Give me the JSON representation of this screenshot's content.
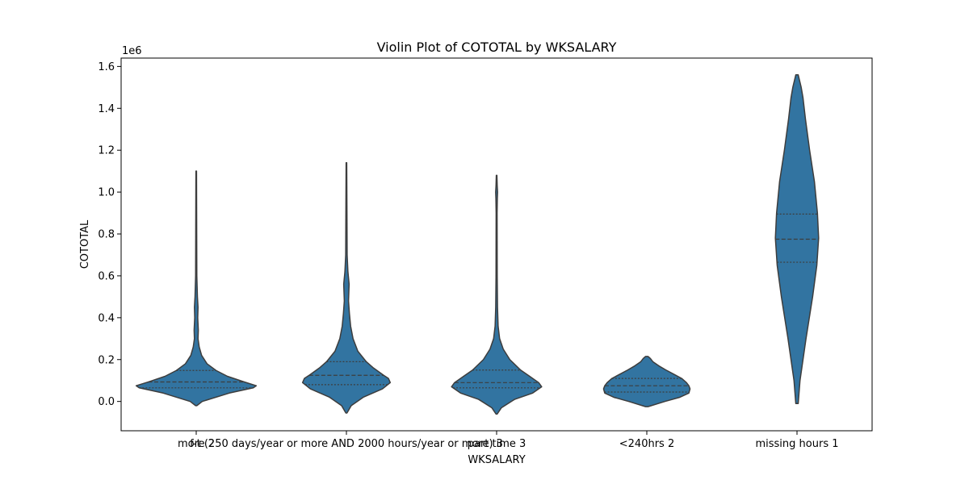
{
  "chart_data": {
    "type": "violin",
    "title": "Violin Plot of COTOTAL by WKSALARY",
    "xlabel": "WKSALARY",
    "ylabel": "COTOTAL",
    "y_offset_label": "1e6",
    "ylim": [
      -0.14,
      1.64
    ],
    "y_ticks": [
      0.0,
      0.2,
      0.4,
      0.6,
      0.8,
      1.0,
      1.2,
      1.4,
      1.6
    ],
    "y_tick_labels": [
      "0.0",
      "0.2",
      "0.4",
      "0.6",
      "0.8",
      "1.0",
      "1.2",
      "1.4",
      "1.6"
    ],
    "categories": [
      "more 2",
      "f-t (250 days/year or more AND 2000 hours/year or more) 3",
      "part time 3",
      "<240hrs 2",
      "missing hours 1"
    ],
    "violin_color": "#3274a1",
    "edge_color": "#3d3d3d",
    "grid": false,
    "legend": "none",
    "violins": [
      {
        "min": -0.02,
        "max": 1.1,
        "quartiles": [
          0.065,
          0.093,
          0.148
        ],
        "density": [
          [
            -0.02,
            0.01
          ],
          [
            0.0,
            0.1
          ],
          [
            0.04,
            0.55
          ],
          [
            0.065,
            0.95
          ],
          [
            0.075,
            1.0
          ],
          [
            0.093,
            0.8
          ],
          [
            0.12,
            0.52
          ],
          [
            0.148,
            0.33
          ],
          [
            0.18,
            0.18
          ],
          [
            0.22,
            0.09
          ],
          [
            0.26,
            0.05
          ],
          [
            0.3,
            0.03
          ],
          [
            0.34,
            0.035
          ],
          [
            0.4,
            0.025
          ],
          [
            0.45,
            0.03
          ],
          [
            0.5,
            0.02
          ],
          [
            0.55,
            0.015
          ],
          [
            0.6,
            0.01
          ],
          [
            0.8,
            0.008
          ],
          [
            1.1,
            0.005
          ]
        ]
      },
      {
        "min": -0.055,
        "max": 1.14,
        "quartiles": [
          0.08,
          0.125,
          0.19
        ],
        "density": [
          [
            -0.055,
            0.01
          ],
          [
            -0.02,
            0.08
          ],
          [
            0.02,
            0.28
          ],
          [
            0.06,
            0.6
          ],
          [
            0.09,
            0.73
          ],
          [
            0.11,
            0.7
          ],
          [
            0.125,
            0.62
          ],
          [
            0.16,
            0.45
          ],
          [
            0.19,
            0.33
          ],
          [
            0.24,
            0.19
          ],
          [
            0.3,
            0.11
          ],
          [
            0.36,
            0.07
          ],
          [
            0.42,
            0.05
          ],
          [
            0.48,
            0.035
          ],
          [
            0.56,
            0.045
          ],
          [
            0.62,
            0.025
          ],
          [
            0.7,
            0.012
          ],
          [
            0.9,
            0.009
          ],
          [
            1.14,
            0.005
          ]
        ]
      },
      {
        "min": -0.06,
        "max": 1.08,
        "quartiles": [
          0.065,
          0.09,
          0.15
        ],
        "density": [
          [
            -0.06,
            0.01
          ],
          [
            -0.03,
            0.08
          ],
          [
            0.01,
            0.3
          ],
          [
            0.04,
            0.6
          ],
          [
            0.07,
            0.75
          ],
          [
            0.09,
            0.7
          ],
          [
            0.12,
            0.55
          ],
          [
            0.15,
            0.4
          ],
          [
            0.2,
            0.22
          ],
          [
            0.25,
            0.11
          ],
          [
            0.3,
            0.05
          ],
          [
            0.36,
            0.025
          ],
          [
            0.45,
            0.015
          ],
          [
            0.6,
            0.01
          ],
          [
            0.9,
            0.008
          ],
          [
            0.97,
            0.012
          ],
          [
            1.0,
            0.016
          ],
          [
            1.03,
            0.01
          ],
          [
            1.08,
            0.005
          ]
        ]
      },
      {
        "min": -0.025,
        "max": 0.215,
        "quartiles": [
          0.045,
          0.075,
          0.11
        ],
        "density": [
          [
            -0.025,
            0.02
          ],
          [
            0.0,
            0.3
          ],
          [
            0.02,
            0.55
          ],
          [
            0.04,
            0.7
          ],
          [
            0.06,
            0.72
          ],
          [
            0.075,
            0.7
          ],
          [
            0.09,
            0.66
          ],
          [
            0.11,
            0.58
          ],
          [
            0.13,
            0.45
          ],
          [
            0.15,
            0.32
          ],
          [
            0.17,
            0.2
          ],
          [
            0.19,
            0.1
          ],
          [
            0.205,
            0.06
          ],
          [
            0.215,
            0.02
          ]
        ]
      },
      {
        "min": -0.01,
        "max": 1.56,
        "quartiles": [
          0.665,
          0.775,
          0.895
        ],
        "density": [
          [
            -0.01,
            0.02
          ],
          [
            0.1,
            0.05
          ],
          [
            0.3,
            0.15
          ],
          [
            0.5,
            0.26
          ],
          [
            0.65,
            0.33
          ],
          [
            0.78,
            0.36
          ],
          [
            0.9,
            0.34
          ],
          [
            1.05,
            0.29
          ],
          [
            1.2,
            0.21
          ],
          [
            1.35,
            0.14
          ],
          [
            1.45,
            0.1
          ],
          [
            1.5,
            0.07
          ],
          [
            1.56,
            0.02
          ]
        ]
      }
    ]
  }
}
